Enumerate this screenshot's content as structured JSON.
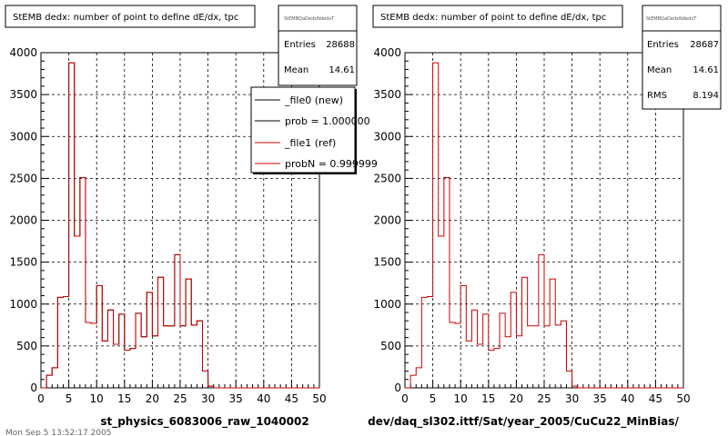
{
  "panels": [
    {
      "title": "StEMB dedx: number of point to define dE/dx, tpc",
      "stats": {
        "name": "StEMBQaDedxNdedxT",
        "rows": [
          {
            "label": "Entries",
            "value": "28688"
          },
          {
            "label": "Mean",
            "value": "14.61"
          }
        ]
      },
      "legend": [
        {
          "text": "_file0 (new)",
          "color": "#000000"
        },
        {
          "text": "prob = 1.000000",
          "color": "#000000"
        },
        {
          "text": "_file1 (ref)",
          "color": "#cc0000"
        },
        {
          "text": "probN = 0.999999",
          "color": "#cc0000"
        }
      ],
      "xlabel": "st_physics_6083006_raw_1040002"
    },
    {
      "title": "StEMB dedx: number of point to define dE/dx, tpc",
      "stats": {
        "name": "StEMBQaDedxNdedxT",
        "rows": [
          {
            "label": "Entries",
            "value": "28687"
          },
          {
            "label": "Mean",
            "value": "14.61"
          },
          {
            "label": "RMS",
            "value": "8.194"
          }
        ]
      },
      "xlabel": "dev/daq_sl302.ittf/Sat/year_2005/CuCu22_MinBias/"
    }
  ],
  "footer": "Mon Sep 5 13:52:17 2005",
  "chart_data": [
    {
      "type": "bar",
      "style": "step-histogram",
      "title": "StEMB dedx: number of point to define dE/dx, tpc",
      "xlabel": "st_physics_6083006_raw_1040002",
      "ylabel": "",
      "xlim": [
        0,
        50
      ],
      "ylim": [
        0,
        4000
      ],
      "xticks": [
        "0",
        "5",
        "10",
        "15",
        "20",
        "25",
        "30",
        "35",
        "40",
        "45",
        "50"
      ],
      "yticks": [
        "0",
        "500",
        "1000",
        "1500",
        "2000",
        "2500",
        "3000",
        "3500",
        "4000"
      ],
      "grid": true,
      "bin_width": 1,
      "series": [
        {
          "name": "_file0 (new)",
          "color": "#000000",
          "values": [
            0,
            150,
            240,
            1080,
            1090,
            3880,
            1810,
            2510,
            780,
            770,
            1220,
            560,
            930,
            520,
            880,
            450,
            470,
            890,
            610,
            1140,
            620,
            1320,
            740,
            740,
            1590,
            740,
            1300,
            750,
            800,
            200,
            20,
            0,
            0,
            0,
            0,
            0,
            0,
            0,
            0,
            0,
            0,
            0,
            0,
            0,
            0,
            0,
            0,
            0,
            0,
            0
          ]
        },
        {
          "name": "_file1 (ref)",
          "color": "#cc0000",
          "values": [
            0,
            150,
            240,
            1080,
            1090,
            3880,
            1810,
            2510,
            780,
            770,
            1220,
            560,
            930,
            520,
            880,
            450,
            470,
            890,
            610,
            1140,
            620,
            1320,
            740,
            740,
            1590,
            740,
            1300,
            750,
            800,
            200,
            20,
            0,
            0,
            0,
            0,
            0,
            0,
            0,
            0,
            0,
            0,
            0,
            0,
            0,
            0,
            0,
            0,
            0,
            0,
            0
          ]
        }
      ]
    },
    {
      "type": "bar",
      "style": "step-histogram",
      "title": "StEMB dedx: number of point to define dE/dx, tpc",
      "xlabel": "dev/daq_sl302.ittf/Sat/year_2005/CuCu22_MinBias/",
      "ylabel": "",
      "xlim": [
        0,
        50
      ],
      "ylim": [
        0,
        4000
      ],
      "xticks": [
        "0",
        "5",
        "10",
        "15",
        "20",
        "25",
        "30",
        "35",
        "40",
        "45",
        "50"
      ],
      "yticks": [
        "0",
        "500",
        "1000",
        "1500",
        "2000",
        "2500",
        "3000",
        "3500",
        "4000"
      ],
      "grid": true,
      "bin_width": 1,
      "series": [
        {
          "color": "#cc0000",
          "values": [
            0,
            150,
            240,
            1080,
            1090,
            3880,
            1810,
            2510,
            780,
            770,
            1220,
            560,
            930,
            520,
            880,
            450,
            470,
            890,
            610,
            1140,
            620,
            1320,
            740,
            740,
            1590,
            740,
            1300,
            750,
            800,
            200,
            20,
            0,
            0,
            0,
            0,
            0,
            0,
            0,
            0,
            0,
            0,
            0,
            0,
            0,
            0,
            0,
            0,
            0,
            0,
            0
          ]
        }
      ]
    }
  ]
}
